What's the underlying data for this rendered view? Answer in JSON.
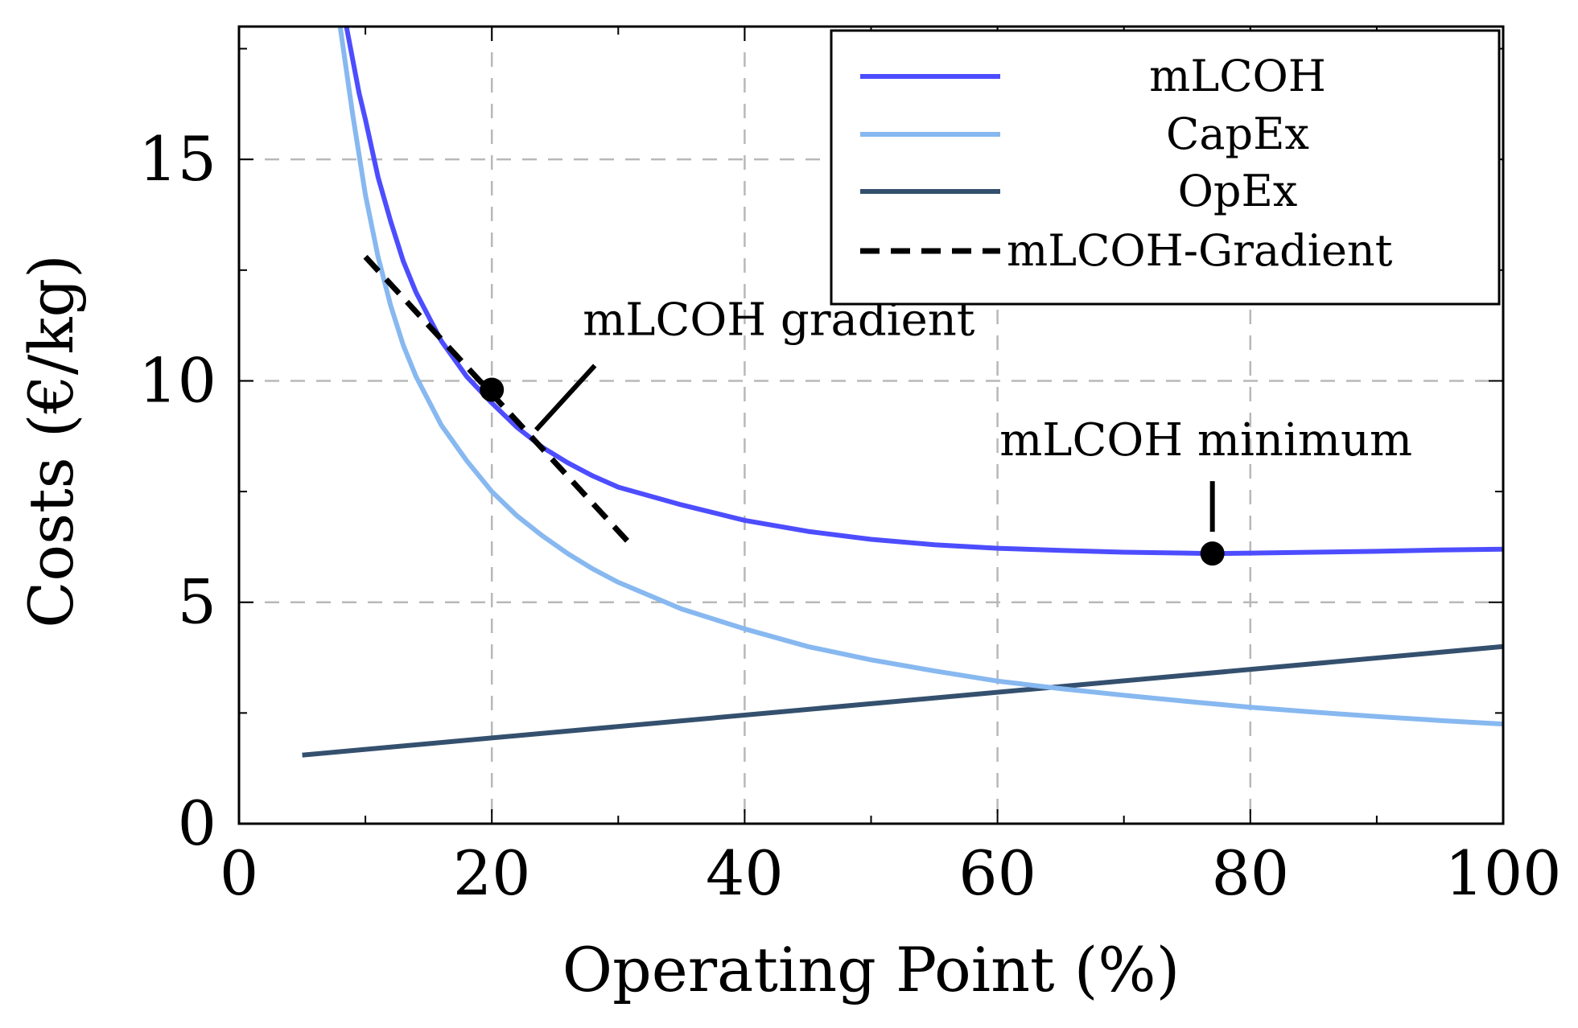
{
  "chart_data": {
    "type": "line",
    "xlabel": "Operating Point (%)",
    "ylabel": "Costs (€/kg)",
    "xlim": [
      0,
      100
    ],
    "ylim": [
      0,
      18
    ],
    "x_ticks": [
      0,
      20,
      40,
      60,
      80,
      100
    ],
    "y_ticks": [
      0,
      5,
      10,
      15
    ],
    "grid": true,
    "legend_position": "top-right",
    "series": [
      {
        "name": "mLCOH",
        "color": "#4d4dff",
        "style": "solid",
        "x": [
          8.5,
          9.5,
          10,
          11,
          12,
          13,
          14,
          16,
          18,
          20,
          22,
          24,
          26,
          28,
          30,
          35,
          40,
          45,
          50,
          55,
          60,
          65,
          70,
          75,
          77,
          80,
          85,
          90,
          95,
          100
        ],
        "y": [
          18.0,
          16.5,
          15.9,
          14.6,
          13.6,
          12.7,
          12.0,
          10.9,
          10.1,
          9.5,
          8.95,
          8.5,
          8.15,
          7.85,
          7.6,
          7.2,
          6.85,
          6.6,
          6.42,
          6.3,
          6.22,
          6.17,
          6.13,
          6.11,
          6.1,
          6.11,
          6.13,
          6.15,
          6.18,
          6.2
        ]
      },
      {
        "name": "CapEx",
        "color": "#87b8f0",
        "style": "solid",
        "x": [
          8,
          9,
          10,
          11,
          12,
          13,
          14,
          16,
          18,
          20,
          22,
          24,
          26,
          28,
          30,
          35,
          40,
          45,
          50,
          55,
          60,
          65,
          70,
          75,
          80,
          85,
          90,
          95,
          100
        ],
        "y": [
          18.0,
          16.0,
          14.2,
          12.8,
          11.7,
          10.8,
          10.1,
          9.0,
          8.2,
          7.5,
          6.95,
          6.5,
          6.1,
          5.75,
          5.45,
          4.85,
          4.4,
          4.0,
          3.7,
          3.45,
          3.22,
          3.05,
          2.9,
          2.76,
          2.63,
          2.52,
          2.42,
          2.33,
          2.25
        ]
      },
      {
        "name": "OpEx",
        "color": "#34506e",
        "style": "solid",
        "x": [
          5,
          100
        ],
        "y": [
          1.55,
          4.0
        ]
      },
      {
        "name": "mLCOH-Gradient",
        "color": "#000000",
        "style": "dashed",
        "x": [
          10,
          31
        ],
        "y": [
          12.8,
          6.3
        ]
      }
    ],
    "points": [
      {
        "name": "gradient-point",
        "x": 20,
        "y": 9.8
      },
      {
        "name": "minimum-point",
        "x": 77,
        "y": 6.1
      }
    ],
    "annotations": [
      {
        "text": "mLCOH gradient",
        "point": "gradient-point"
      },
      {
        "text": "mLCOH minimum",
        "point": "minimum-point"
      }
    ]
  }
}
